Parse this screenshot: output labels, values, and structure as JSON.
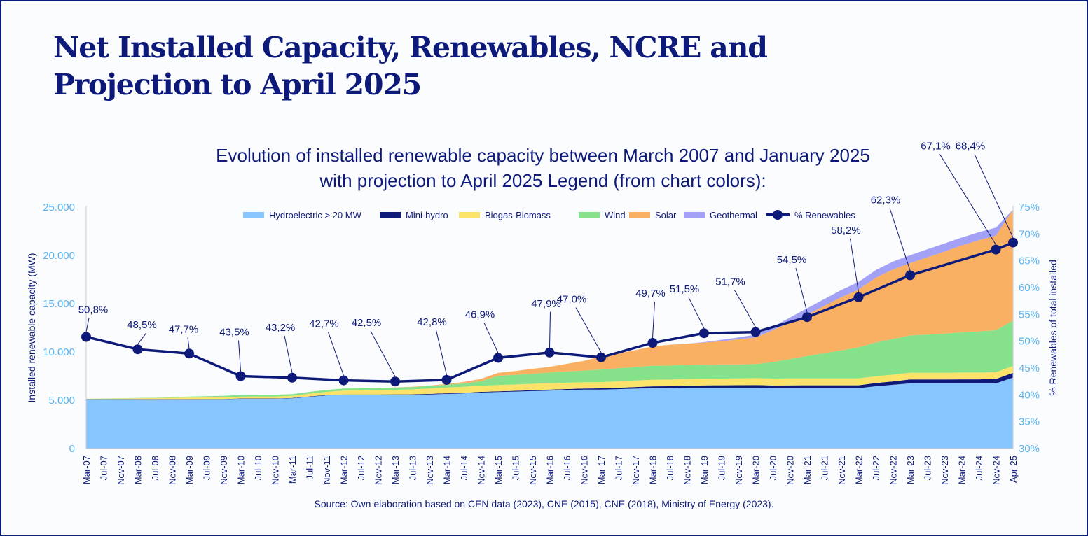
{
  "page": {
    "title_line1": "Net Installed Capacity, Renewables, NCRE and",
    "title_line2": "Projection to April 2025",
    "chart_title_line1": "Evolution of installed renewable capacity between March 2007 and January 2025",
    "chart_title_line2": "with projection to April 2025 Legend (from chart colors):",
    "source": "Source: Own elaboration based on CEN data (2023), CNE (2015), CNE (2018), Ministry of Energy (2023)."
  },
  "colors": {
    "navy": "#0d1a7a",
    "accent_axis": "#5ab3ee",
    "grid": "#c9ccd6",
    "hydro": "#86c5fd",
    "minihydro": "#0d1a7a",
    "biogas": "#fbe36a",
    "wind": "#86e28a",
    "solar": "#f9b062",
    "geothermal": "#a3a1f6"
  },
  "chart_data": {
    "type": "area",
    "title": "Evolution of installed renewable capacity between March 2007 and January 2025 with projection to April 2025 Legend (from chart colors):",
    "ylabel": "Installed renewable capacity (MW)",
    "y2label": "% Renewables of total installed",
    "ylim": [
      0,
      25000
    ],
    "y2lim": [
      30,
      75
    ],
    "y_ticks": [
      "0",
      "5.000",
      "10.000",
      "15.000",
      "20.000",
      "25.000"
    ],
    "y2_ticks": [
      "30%",
      "35%",
      "40%",
      "45%",
      "50%",
      "55%",
      "60%",
      "65%",
      "70%",
      "75%"
    ],
    "categories": [
      "Mar-07",
      "Jul-07",
      "Nov-07",
      "Mar-08",
      "Jul-08",
      "Nov-08",
      "Mar-09",
      "Jul-09",
      "Nov-09",
      "Mar-10",
      "Jul-10",
      "Nov-10",
      "Mar-11",
      "Jul-11",
      "Nov-11",
      "Mar-12",
      "Jul-12",
      "Nov-12",
      "Mar-13",
      "Jul-13",
      "Nov-13",
      "Mar-14",
      "Jul-14",
      "Nov-14",
      "Mar-15",
      "Jul-15",
      "Nov-15",
      "Mar-16",
      "Jul-16",
      "Nov-16",
      "Mar-17",
      "Jul-17",
      "Nov-17",
      "Mar-18",
      "Jul-18",
      "Nov-18",
      "Mar-19",
      "Jul-19",
      "Nov-19",
      "Mar-20",
      "Jul-20",
      "Nov-20",
      "Mar-21",
      "Jul-21",
      "Nov-21",
      "Mar-22",
      "Jul-22",
      "Nov-22",
      "Mar-23",
      "Jul-23",
      "Nov-23",
      "Mar-24",
      "Jul-24",
      "Nov-24",
      "Apr-25"
    ],
    "series": [
      {
        "name": "Hydroelectric > 20 MW",
        "color_key": "hydro",
        "values": [
          5100,
          5100,
          5100,
          5100,
          5100,
          5100,
          5100,
          5100,
          5100,
          5150,
          5150,
          5150,
          5200,
          5350,
          5500,
          5550,
          5550,
          5550,
          5550,
          5550,
          5600,
          5650,
          5700,
          5800,
          5850,
          5900,
          5950,
          6000,
          6050,
          6100,
          6100,
          6150,
          6200,
          6250,
          6250,
          6300,
          6300,
          6300,
          6300,
          6300,
          6250,
          6250,
          6250,
          6250,
          6250,
          6250,
          6450,
          6600,
          6750,
          6750,
          6750,
          6750,
          6750,
          6750,
          7350
        ]
      },
      {
        "name": "Mini-hydro",
        "color_key": "minihydro",
        "values": [
          30,
          30,
          30,
          30,
          30,
          30,
          30,
          30,
          30,
          30,
          30,
          30,
          30,
          40,
          40,
          50,
          50,
          50,
          60,
          60,
          60,
          70,
          70,
          70,
          80,
          80,
          90,
          100,
          110,
          120,
          130,
          150,
          170,
          190,
          200,
          210,
          240,
          250,
          260,
          270,
          280,
          290,
          300,
          300,
          300,
          300,
          330,
          350,
          400,
          400,
          400,
          420,
          420,
          450,
          500
        ]
      },
      {
        "name": "Biogas-Biomass",
        "color_key": "biogas",
        "values": [
          30,
          40,
          60,
          80,
          100,
          120,
          150,
          160,
          170,
          190,
          200,
          210,
          230,
          280,
          330,
          400,
          420,
          450,
          470,
          510,
          560,
          600,
          620,
          640,
          650,
          650,
          660,
          660,
          660,
          650,
          650,
          660,
          670,
          680,
          690,
          690,
          690,
          700,
          700,
          720,
          720,
          720,
          720,
          720,
          720,
          720,
          700,
          700,
          700,
          700,
          700,
          700,
          700,
          700,
          700
        ]
      },
      {
        "name": "Wind",
        "color_key": "wind",
        "values": [
          0,
          10,
          20,
          20,
          30,
          50,
          100,
          130,
          160,
          170,
          180,
          180,
          180,
          200,
          200,
          210,
          210,
          210,
          230,
          250,
          260,
          280,
          350,
          450,
          950,
          1000,
          1050,
          1100,
          1150,
          1200,
          1300,
          1350,
          1400,
          1450,
          1450,
          1450,
          1450,
          1450,
          1450,
          1450,
          1700,
          2000,
          2300,
          2600,
          2900,
          3200,
          3500,
          3700,
          3850,
          3950,
          4050,
          4150,
          4250,
          4350,
          4700
        ]
      },
      {
        "name": "Solar",
        "color_key": "solar",
        "values": [
          0,
          0,
          0,
          0,
          0,
          0,
          0,
          0,
          0,
          0,
          0,
          0,
          0,
          0,
          0,
          0,
          0,
          10,
          20,
          30,
          40,
          80,
          150,
          250,
          300,
          400,
          500,
          600,
          800,
          1000,
          1350,
          1550,
          1750,
          2000,
          2150,
          2200,
          2300,
          2400,
          2600,
          2750,
          3300,
          3800,
          4300,
          4900,
          5500,
          6000,
          6700,
          7200,
          7500,
          8000,
          8500,
          9000,
          9450,
          9800,
          11500
        ]
      },
      {
        "name": "Geothermal",
        "color_key": "geothermal",
        "values": [
          0,
          0,
          0,
          0,
          0,
          0,
          0,
          0,
          0,
          0,
          0,
          0,
          0,
          0,
          0,
          0,
          0,
          0,
          0,
          0,
          0,
          0,
          0,
          0,
          0,
          0,
          0,
          0,
          0,
          0,
          0,
          0,
          0,
          0,
          0,
          0,
          40,
          150,
          200,
          300,
          350,
          500,
          650,
          700,
          750,
          780,
          800,
          810,
          820,
          830,
          830,
          830,
          830,
          830,
          0
        ]
      }
    ],
    "pct_series": {
      "name": "% Renewables",
      "points": [
        {
          "category": "Mar-07",
          "value": 50.8,
          "label": "50,8%"
        },
        {
          "category": "Mar-08",
          "value": 48.5,
          "label": "48,5%"
        },
        {
          "category": "Mar-09",
          "value": 47.7,
          "label": "47,7%"
        },
        {
          "category": "Mar-10",
          "value": 43.5,
          "label": "43,5%"
        },
        {
          "category": "Mar-11",
          "value": 43.2,
          "label": "43,2%"
        },
        {
          "category": "Mar-12",
          "value": 42.7,
          "label": "42,7%"
        },
        {
          "category": "Mar-13",
          "value": 42.5,
          "label": "42,5%"
        },
        {
          "category": "Mar-14",
          "value": 42.8,
          "label": "42,8%"
        },
        {
          "category": "Mar-15",
          "value": 46.9,
          "label": "46,9%"
        },
        {
          "category": "Mar-16",
          "value": 47.9,
          "label": "47,9%"
        },
        {
          "category": "Mar-17",
          "value": 47.0,
          "label": "47,0%"
        },
        {
          "category": "Mar-18",
          "value": 49.7,
          "label": "49,7%"
        },
        {
          "category": "Mar-19",
          "value": 51.5,
          "label": "51,5%"
        },
        {
          "category": "Mar-20",
          "value": 51.7,
          "label": "51,7%"
        },
        {
          "category": "Mar-21",
          "value": 54.5,
          "label": "54,5%"
        },
        {
          "category": "Mar-22",
          "value": 58.2,
          "label": "58,2%"
        },
        {
          "category": "Mar-23",
          "value": 62.3,
          "label": "62,3%"
        },
        {
          "category": "Nov-24",
          "value": 67.1,
          "label": "67,1%"
        },
        {
          "category": "Apr-25",
          "value": 68.4,
          "label": "68,4%"
        }
      ]
    },
    "legend": [
      "Hydroelectric > 20 MW",
      "Mini-hydro",
      "Biogas-Biomass",
      "Wind",
      "Solar",
      "Geothermal",
      "% Renewables"
    ],
    "legend_position": "top"
  }
}
